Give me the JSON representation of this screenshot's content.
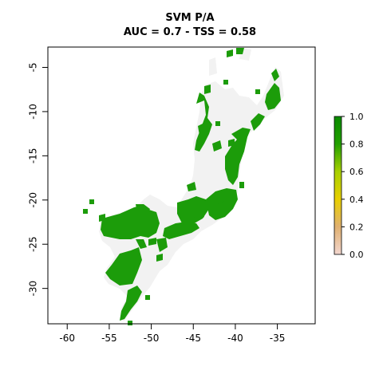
{
  "title": {
    "line1": "SVM P/A",
    "line2": "AUC = 0.7 - TSS = 0.58"
  },
  "map": {
    "x_ticks": [
      {
        "value": -60,
        "label": "-60"
      },
      {
        "value": -55,
        "label": "-55"
      },
      {
        "value": -50,
        "label": "-50"
      },
      {
        "value": -45,
        "label": "-45"
      },
      {
        "value": -40,
        "label": "-40"
      },
      {
        "value": -35,
        "label": "-35"
      }
    ],
    "y_ticks": [
      {
        "value": -5,
        "label": "-5"
      },
      {
        "value": -10,
        "label": "-10"
      },
      {
        "value": -15,
        "label": "-15"
      },
      {
        "value": -20,
        "label": "-20"
      },
      {
        "value": -25,
        "label": "-25"
      },
      {
        "value": -30,
        "label": "-30"
      }
    ],
    "x_range": [
      -62.3,
      -30.5
    ],
    "y_range": [
      -34.0,
      -2.7
    ],
    "colors": {
      "presence": "#1c9c0a",
      "background": "#f2f2f2"
    }
  },
  "legend": {
    "ticks": [
      {
        "value": 1.0,
        "label": "1.0"
      },
      {
        "value": 0.8,
        "label": "0.8"
      },
      {
        "value": 0.6,
        "label": "0.6"
      },
      {
        "value": 0.4,
        "label": "0.4"
      },
      {
        "value": 0.2,
        "label": "0.2"
      },
      {
        "value": 0.0,
        "label": "0.0"
      }
    ],
    "gradient": [
      "#f2d6cf",
      "#e0b070",
      "#e8cf00",
      "#a8d000",
      "#22a000",
      "#0a8a00"
    ]
  }
}
